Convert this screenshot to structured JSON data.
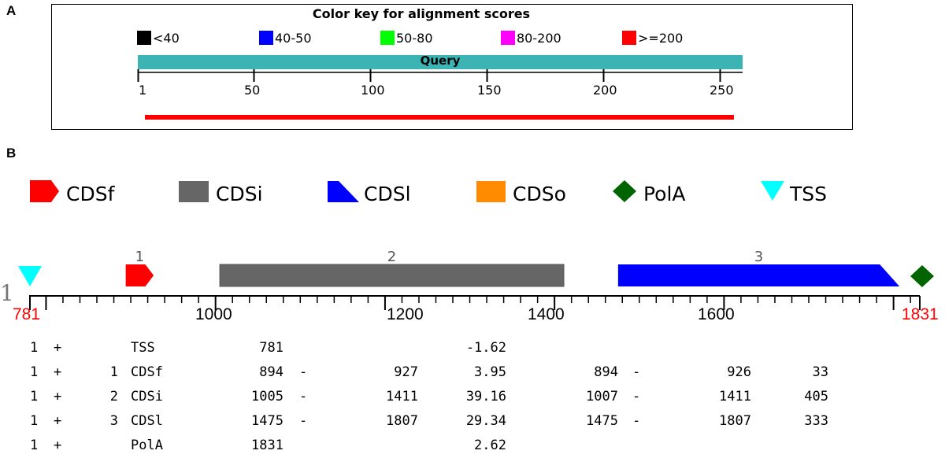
{
  "panel_a": {
    "letter": "A",
    "title": "Color key for alignment scores",
    "key": [
      {
        "label": "<40",
        "color": "#000000"
      },
      {
        "label": "40-50",
        "color": "#0000ff"
      },
      {
        "label": "50-80",
        "color": "#00ff00"
      },
      {
        "label": "80-200",
        "color": "#ff00ff"
      },
      {
        "label": ">=200",
        "color": "#ff0000"
      }
    ],
    "query_label": "Query",
    "ruler_ticks": [
      "1",
      "50",
      "100",
      "150",
      "200",
      "250"
    ]
  },
  "panel_b": {
    "letter": "B",
    "legend": [
      {
        "label": "CDSf",
        "color": "#ff0000",
        "shape": "pentagon-arrow"
      },
      {
        "label": "CDSi",
        "color": "#666666",
        "shape": "rectangle"
      },
      {
        "label": "CDSl",
        "color": "#0000ff",
        "shape": "right-triangle"
      },
      {
        "label": "CDSo",
        "color": "#ff8c00",
        "shape": "square"
      },
      {
        "label": "PolA",
        "color": "#006400",
        "shape": "diamond"
      },
      {
        "label": "TSS",
        "color": "#00ffff",
        "shape": "down-triangle"
      }
    ],
    "track_label": "1",
    "axis_start": 781,
    "axis_end": 1831,
    "axis_start_label": "781",
    "axis_end_label": "1831",
    "axis_ticks": [
      "1000",
      "1200",
      "1400",
      "1600"
    ],
    "features": [
      {
        "number": "1",
        "type": "CDSf",
        "start": 894,
        "end": 927
      },
      {
        "number": "2",
        "type": "CDSi",
        "start": 1005,
        "end": 1411
      },
      {
        "number": "3",
        "type": "CDSl",
        "start": 1475,
        "end": 1807
      }
    ],
    "tss_position": 781,
    "pola_position": 1831,
    "table_rows": [
      {
        "col1": "1",
        "strand": "+",
        "num": "",
        "type": "TSS",
        "start": "781",
        "dash": "",
        "end": "",
        "score": "-1.62",
        "start2": "",
        "dash2": "",
        "end2": "",
        "len": ""
      },
      {
        "col1": "1",
        "strand": "+",
        "num": "1",
        "type": "CDSf",
        "start": "894",
        "dash": "-",
        "end": "927",
        "score": "3.95",
        "start2": "894",
        "dash2": "-",
        "end2": "926",
        "len": "33"
      },
      {
        "col1": "1",
        "strand": "+",
        "num": "2",
        "type": "CDSi",
        "start": "1005",
        "dash": "-",
        "end": "1411",
        "score": "39.16",
        "start2": "1007",
        "dash2": "-",
        "end2": "1411",
        "len": "405"
      },
      {
        "col1": "1",
        "strand": "+",
        "num": "3",
        "type": "CDSl",
        "start": "1475",
        "dash": "-",
        "end": "1807",
        "score": "29.34",
        "start2": "1475",
        "dash2": "-",
        "end2": "1807",
        "len": "333"
      },
      {
        "col1": "1",
        "strand": "+",
        "num": "",
        "type": "PolA",
        "start": "1831",
        "dash": "",
        "end": "",
        "score": "2.62",
        "start2": "",
        "dash2": "",
        "end2": "",
        "len": ""
      }
    ]
  }
}
